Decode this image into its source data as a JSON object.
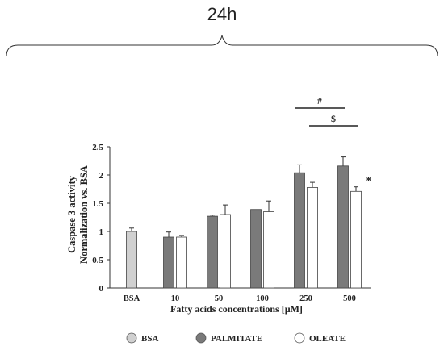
{
  "header": {
    "time_label": "24h"
  },
  "chart_data": {
    "type": "bar",
    "title": "",
    "xlabel": "Fatty acids concentrations [µM]",
    "ylabel_line1": "Caspase 3 activity",
    "ylabel_line2": "Normalization vs. BSA",
    "ylim": [
      0,
      2.5
    ],
    "yticks": [
      "0",
      "0.5",
      "1",
      "1.5",
      "2",
      "2.5"
    ],
    "categories": [
      "BSA",
      "10",
      "50",
      "100",
      "250",
      "500"
    ],
    "grid": false,
    "legend_placement": "bottom",
    "series": [
      {
        "name": "BSA",
        "color": "#d0d0d0",
        "values": [
          1.0,
          null,
          null,
          null,
          null,
          null
        ],
        "errors": [
          0.06,
          null,
          null,
          null,
          null,
          null
        ]
      },
      {
        "name": "PALMITATE",
        "color": "#7a7a7a",
        "values": [
          null,
          0.9,
          1.27,
          1.39,
          2.04,
          2.16
        ],
        "errors": [
          null,
          0.09,
          0.02,
          0.0,
          0.14,
          0.16
        ]
      },
      {
        "name": "OLEATE",
        "color": "#ffffff",
        "values": [
          null,
          0.9,
          1.3,
          1.35,
          1.78,
          1.71
        ],
        "errors": [
          null,
          0.03,
          0.17,
          0.19,
          0.09,
          0.08
        ]
      }
    ],
    "annotations": [
      {
        "text": "#",
        "category_from": "250",
        "category_to": "500"
      },
      {
        "text": "$",
        "category_from": "250",
        "category_to": "500"
      },
      {
        "text": "*",
        "category": "500",
        "series": "OLEATE"
      }
    ]
  }
}
